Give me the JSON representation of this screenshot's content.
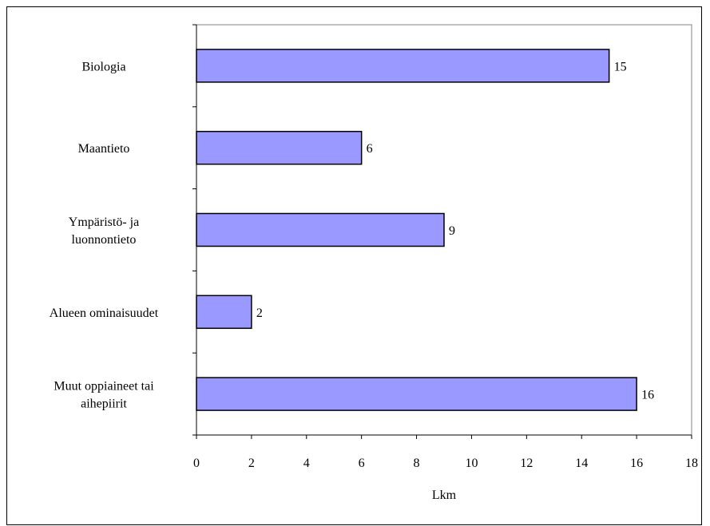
{
  "chart_data": {
    "type": "bar",
    "orientation": "horizontal",
    "categories": [
      [
        "Biologia"
      ],
      [
        "Maantieto"
      ],
      [
        "Ympäristö- ja",
        "luonnontieto"
      ],
      [
        "Alueen ominaisuudet"
      ],
      [
        "Muut oppiaineet tai",
        "aihepiirit"
      ]
    ],
    "values": [
      15,
      6,
      9,
      2,
      16
    ],
    "xlabel": "Lkm",
    "xlim": [
      0,
      18
    ],
    "xticks": [
      0,
      2,
      4,
      6,
      8,
      10,
      12,
      14,
      16,
      18
    ],
    "grid": false,
    "data_labels": true,
    "colors": {
      "bar_fill": "#9999ff",
      "bar_stroke": "#000000",
      "plot_border": "#808080"
    }
  }
}
